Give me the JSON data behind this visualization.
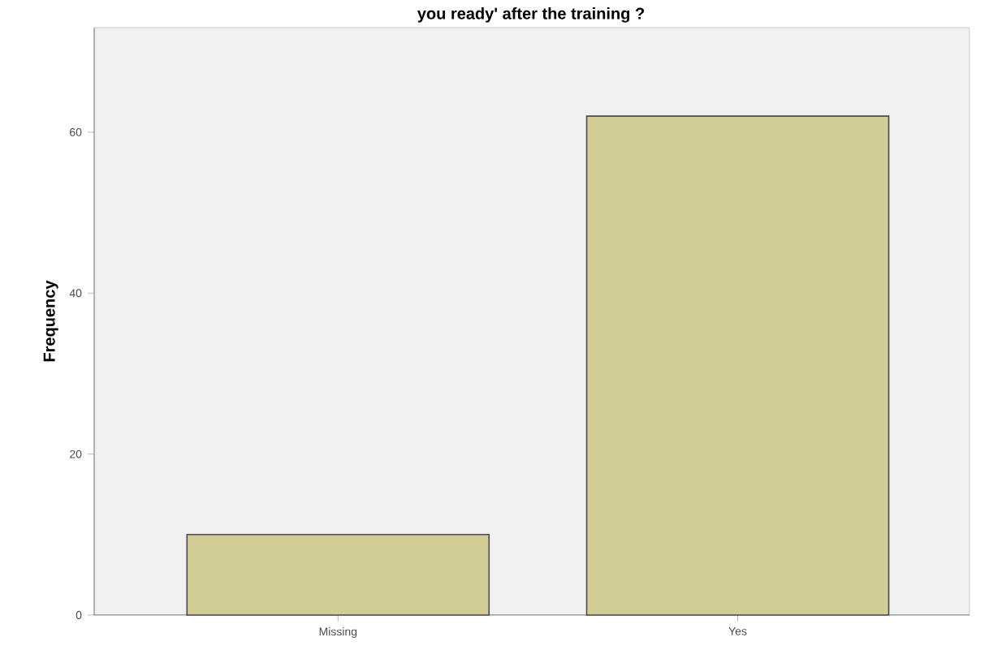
{
  "chart_data": {
    "type": "bar",
    "title": "you ready' after the training ?",
    "ylabel": "Frequency",
    "categories": [
      "Missing",
      "Yes"
    ],
    "values": [
      10,
      62
    ],
    "color": "#d2cd96",
    "ylim": [
      0,
      73
    ],
    "yticks": [
      0,
      20,
      40,
      60
    ],
    "grid": false
  }
}
